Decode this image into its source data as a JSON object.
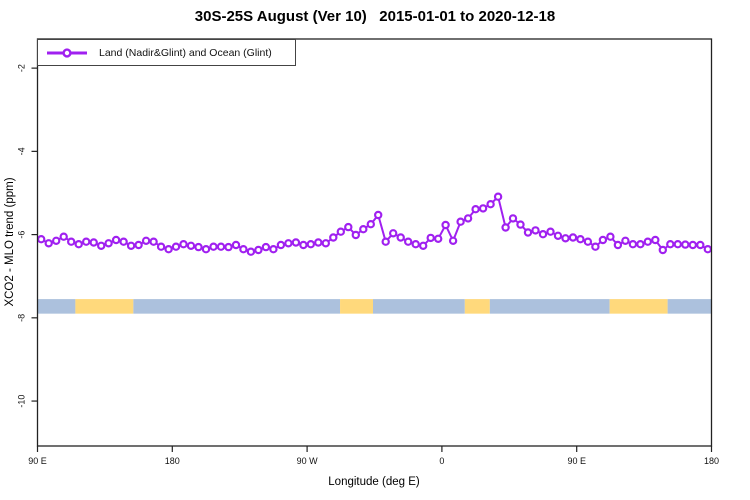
{
  "chart_data": {
    "type": "line",
    "title": "30S-25S August (Ver 10)   2015-01-01 to 2020-12-18",
    "xlabel": "Longitude (deg E)",
    "ylabel": "XCO2 - MLO trend (ppm)",
    "xlim": [
      90,
      540
    ],
    "ylim": [
      -11.08,
      -1.3
    ],
    "grid": false,
    "x_ticks": {
      "values": [
        90,
        180,
        270,
        360,
        450,
        540
      ],
      "labels": [
        "90 E",
        "180",
        "90 W",
        "0",
        "90 E",
        "180"
      ]
    },
    "y_ticks": {
      "values": [
        -2,
        -4,
        -6,
        -8,
        -10
      ],
      "labels": [
        "-2",
        "-4",
        "-6",
        "-8",
        "-10"
      ]
    },
    "legend": {
      "position": "top-left",
      "entries": [
        {
          "label": "Land (Nadir&Glint) and Ocean (Glint)",
          "color": "#A020F0",
          "marker": "open-circle",
          "line": true
        }
      ]
    },
    "series": [
      {
        "name": "Land (Nadir&Glint) and Ocean (Glint)",
        "color": "#A020F0",
        "marker_fill": "#ffffff",
        "x": [
          92.5,
          97.5,
          102.5,
          107.5,
          112.5,
          117.5,
          122.5,
          127.5,
          132.5,
          137.5,
          142.5,
          147.5,
          152.5,
          157.5,
          162.5,
          167.5,
          172.5,
          177.5,
          182.5,
          187.5,
          192.5,
          197.5,
          202.5,
          207.5,
          212.5,
          217.5,
          222.5,
          227.5,
          232.5,
          237.5,
          242.5,
          247.5,
          252.5,
          257.5,
          262.5,
          267.5,
          272.5,
          277.5,
          282.5,
          287.5,
          292.5,
          297.5,
          302.5,
          307.5,
          312.5,
          317.5,
          322.5,
          327.5,
          332.5,
          337.5,
          342.5,
          347.5,
          352.5,
          357.5,
          362.5,
          367.5,
          372.5,
          377.5,
          382.5,
          387.5,
          392.5,
          397.5,
          402.5,
          407.5,
          412.5,
          417.5,
          422.5,
          427.5,
          432.5,
          437.5,
          442.5,
          447.5,
          452.5,
          457.5,
          462.5,
          467.5,
          472.5,
          477.5,
          482.5,
          487.5,
          492.5,
          497.5,
          502.5,
          507.5,
          512.5,
          517.5,
          522.5,
          527.5,
          532.5,
          537.5
        ],
        "y": [
          -6.11,
          -6.21,
          -6.15,
          -6.05,
          -6.17,
          -6.23,
          -6.17,
          -6.19,
          -6.27,
          -6.21,
          -6.13,
          -6.17,
          -6.27,
          -6.25,
          -6.15,
          -6.17,
          -6.29,
          -6.35,
          -6.29,
          -6.23,
          -6.27,
          -6.3,
          -6.35,
          -6.29,
          -6.29,
          -6.3,
          -6.25,
          -6.35,
          -6.41,
          -6.37,
          -6.3,
          -6.35,
          -6.25,
          -6.21,
          -6.19,
          -6.25,
          -6.23,
          -6.19,
          -6.21,
          -6.07,
          -5.93,
          -5.82,
          -6.01,
          -5.87,
          -5.75,
          -5.53,
          -6.17,
          -5.97,
          -6.07,
          -6.17,
          -6.23,
          -6.27,
          -6.08,
          -6.1,
          -5.77,
          -6.15,
          -5.69,
          -5.61,
          -5.39,
          -5.37,
          -5.27,
          -5.09,
          -5.83,
          -5.61,
          -5.76,
          -5.95,
          -5.9,
          -5.99,
          -5.93,
          -6.03,
          -6.09,
          -6.07,
          -6.11,
          -6.17,
          -6.29,
          -6.13,
          -6.05,
          -6.25,
          -6.15,
          -6.23,
          -6.23,
          -6.17,
          -6.13,
          -6.37,
          -6.23,
          -6.23,
          -6.24,
          -6.25,
          -6.25,
          -6.35
        ]
      }
    ],
    "surface_band": {
      "description": "land/ocean strip",
      "y_range": [
        -7.9,
        -7.55
      ],
      "colors": {
        "ocean": "#ACC1DD",
        "land": "#FFD97C"
      },
      "segments": [
        {
          "from": 90,
          "to": 115.3,
          "type": "ocean"
        },
        {
          "from": 115.3,
          "to": 154,
          "type": "land"
        },
        {
          "from": 154,
          "to": 292,
          "type": "ocean"
        },
        {
          "from": 292,
          "to": 314,
          "type": "land"
        },
        {
          "from": 314,
          "to": 375.3,
          "type": "ocean"
        },
        {
          "from": 375.3,
          "to": 392,
          "type": "land"
        },
        {
          "from": 392,
          "to": 472,
          "type": "ocean"
        },
        {
          "from": 472,
          "to": 510.7,
          "type": "land"
        },
        {
          "from": 510.7,
          "to": 540,
          "type": "ocean"
        }
      ]
    }
  }
}
